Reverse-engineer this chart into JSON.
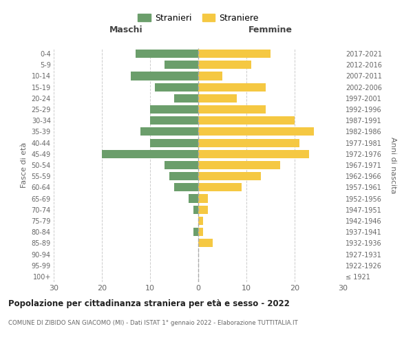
{
  "age_groups": [
    "100+",
    "95-99",
    "90-94",
    "85-89",
    "80-84",
    "75-79",
    "70-74",
    "65-69",
    "60-64",
    "55-59",
    "50-54",
    "45-49",
    "40-44",
    "35-39",
    "30-34",
    "25-29",
    "20-24",
    "15-19",
    "10-14",
    "5-9",
    "0-4"
  ],
  "birth_years": [
    "≤ 1921",
    "1922-1926",
    "1927-1931",
    "1932-1936",
    "1937-1941",
    "1942-1946",
    "1947-1951",
    "1952-1956",
    "1957-1961",
    "1962-1966",
    "1967-1971",
    "1972-1976",
    "1977-1981",
    "1982-1986",
    "1987-1991",
    "1992-1996",
    "1997-2001",
    "2002-2006",
    "2007-2011",
    "2012-2016",
    "2017-2021"
  ],
  "maschi": [
    0,
    0,
    0,
    0,
    1,
    0,
    1,
    2,
    5,
    6,
    7,
    20,
    10,
    12,
    10,
    10,
    5,
    9,
    14,
    7,
    13
  ],
  "femmine": [
    0,
    0,
    0,
    3,
    1,
    1,
    2,
    2,
    9,
    13,
    17,
    23,
    21,
    24,
    20,
    14,
    8,
    14,
    5,
    11,
    15
  ],
  "maschi_color": "#6b9e6b",
  "femmine_color": "#f5c842",
  "title": "Popolazione per cittadinanza straniera per età e sesso - 2022",
  "subtitle": "COMUNE DI ZIBIDO SAN GIACOMO (MI) - Dati ISTAT 1° gennaio 2022 - Elaborazione TUTTITALIA.IT",
  "ylabel_left": "Fasce di età",
  "ylabel_right": "Anni di nascita",
  "xlabel_maschi": "Maschi",
  "xlabel_femmine": "Femmine",
  "legend_maschi": "Stranieri",
  "legend_femmine": "Straniere",
  "xlim": 30,
  "background_color": "#ffffff",
  "grid_color": "#cccccc",
  "bar_height": 0.75
}
